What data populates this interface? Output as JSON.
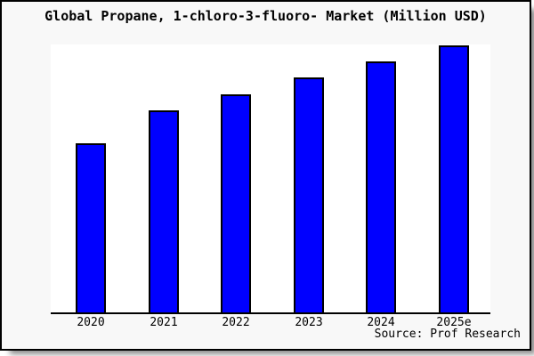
{
  "title": "Global Propane, 1-chloro-3-fluoro- Market (Million USD)",
  "source_note": "Source: Prof Research",
  "chart_data": {
    "type": "bar",
    "title": "Global Propane, 1-chloro-3-fluoro- Market (Million USD)",
    "categories": [
      "2020",
      "2021",
      "2022",
      "2023",
      "2024",
      "2025e"
    ],
    "values": [
      63.3,
      75.7,
      81.7,
      88.0,
      94.0,
      100.0
    ],
    "values_note": "relative bar heights, percent of tallest (2025e) bar; chart shows no numeric y-axis labels",
    "xlabel": "",
    "ylabel": "",
    "ylim": [
      0,
      100
    ],
    "grid": false,
    "legend": "none",
    "y_axis_visible": false,
    "x_axis_line": true,
    "bar_color": "#0000ff",
    "bar_edge_color": "#000000",
    "plot_background": "#ffffff",
    "figure_background": "#f8f8f8",
    "frame_border_color": "#000000",
    "source_note": "Source: Prof Research"
  }
}
